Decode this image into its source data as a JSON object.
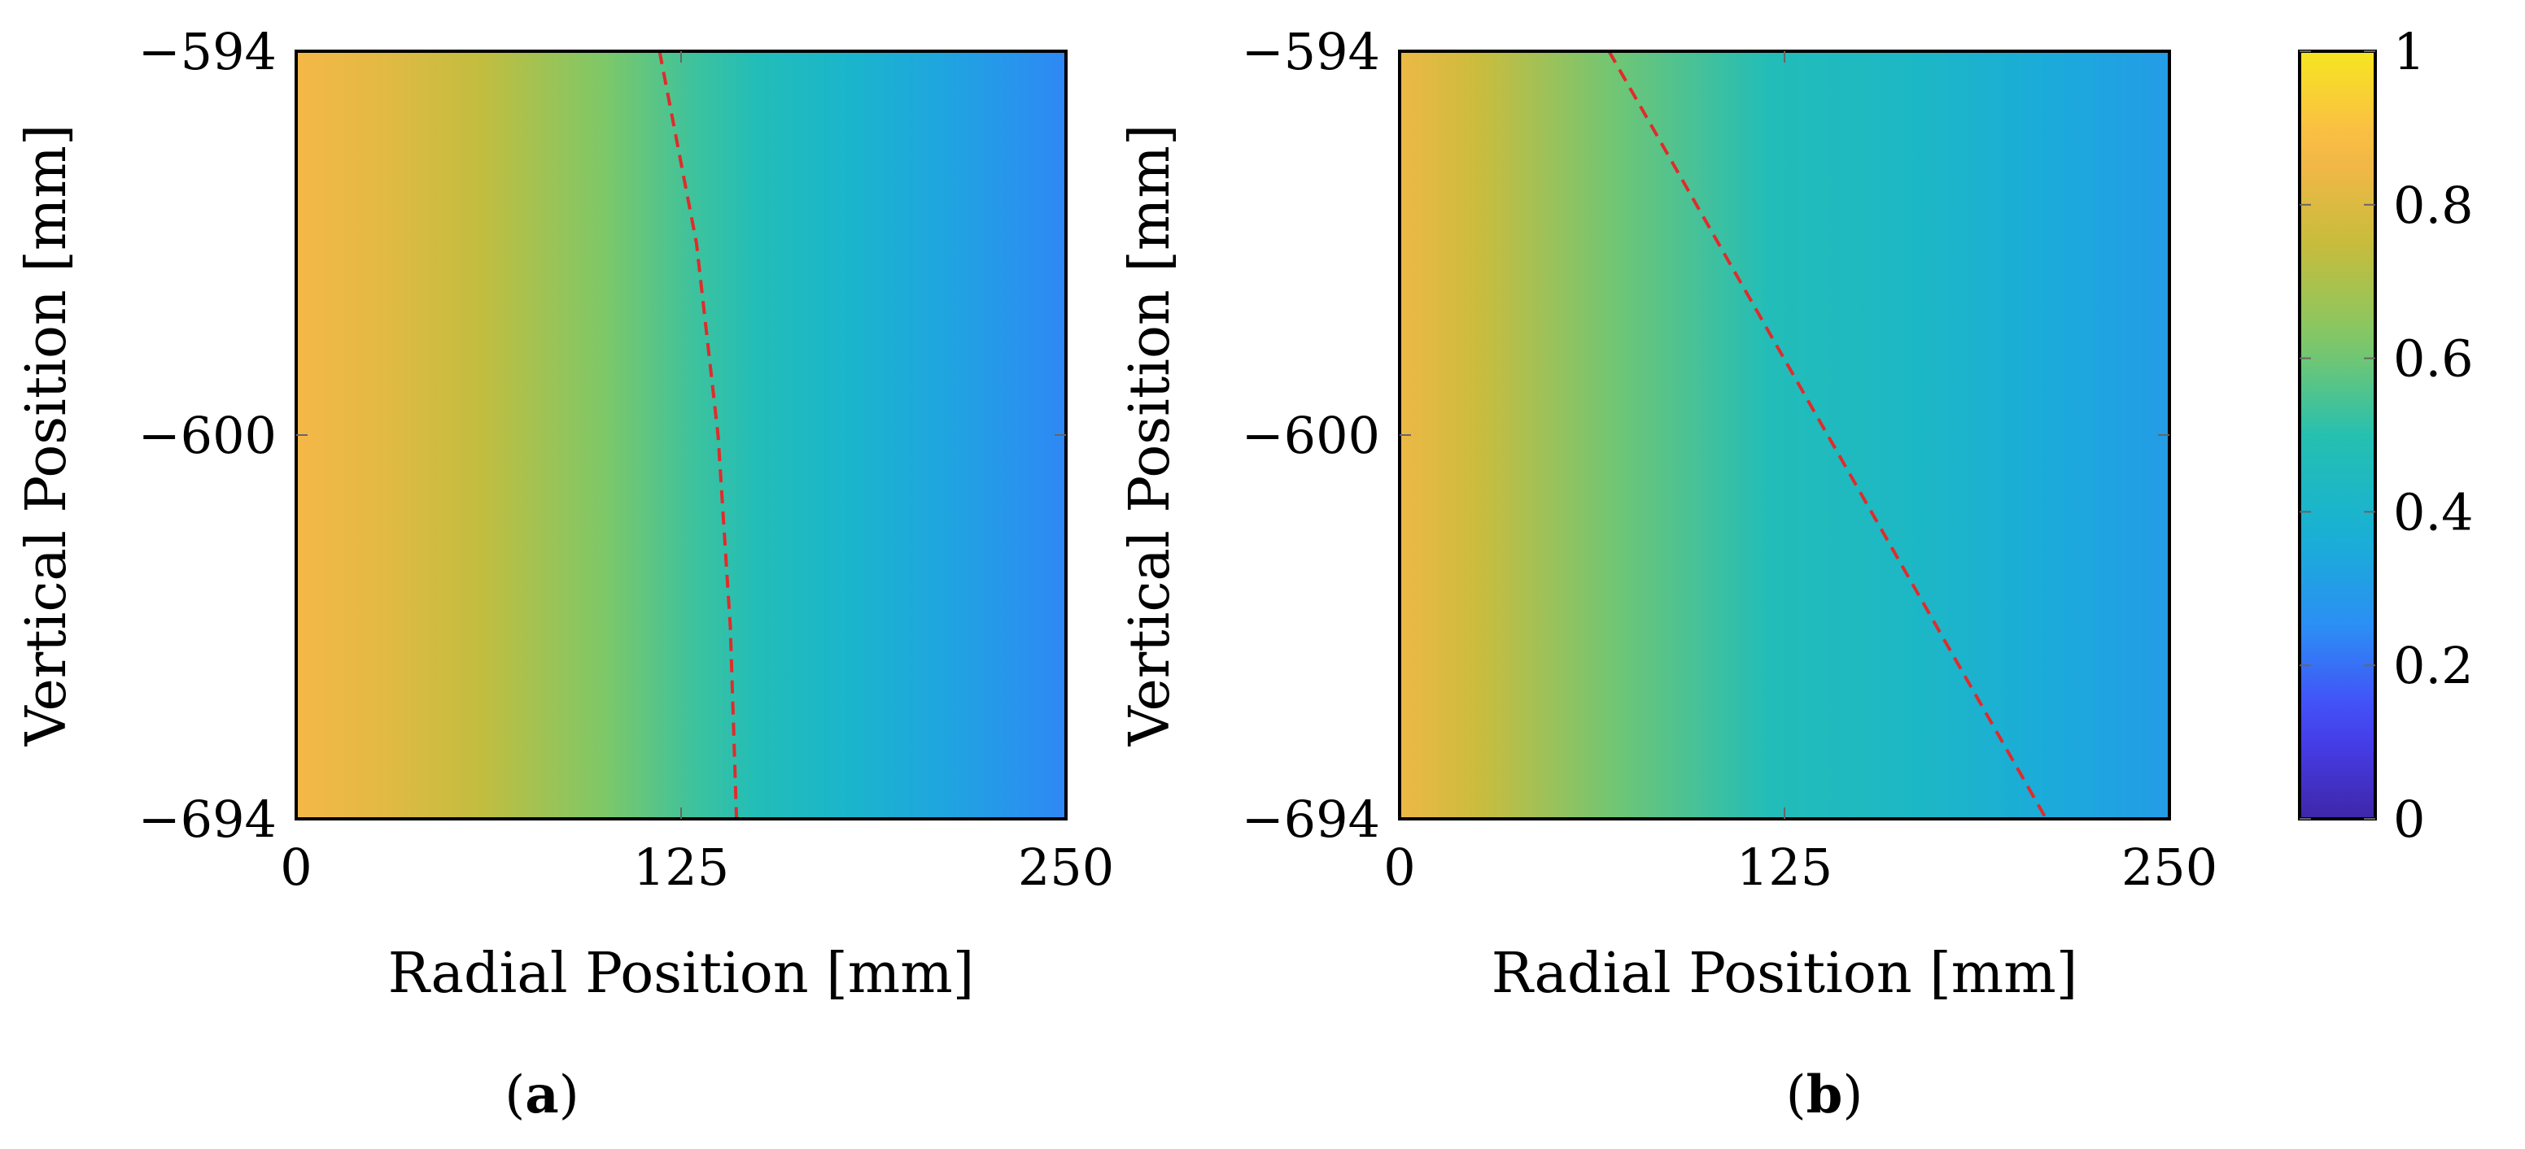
{
  "colors": {
    "colormap": [
      "#3e26a8",
      "#4743f8",
      "#2c8ef5",
      "#17b2d3",
      "#26c0b0",
      "#82c865",
      "#c8bc3c",
      "#fbb64a",
      "#f6e620"
    ],
    "dashed_line": "#e02b2b"
  },
  "chart_data": [
    {
      "type": "heatmap",
      "panel_label": "a",
      "xlabel": "Radial Position [mm]",
      "ylabel": "Vertical Position [mm]",
      "xlim": [
        0,
        250
      ],
      "x_ticks": [
        "0",
        "125",
        "250"
      ],
      "y_ticks": [
        "−594",
        "−600",
        "−694"
      ],
      "field_profile": [
        {
          "r": 0,
          "value": 0.86
        },
        {
          "r": 25,
          "value": 0.82
        },
        {
          "r": 60,
          "value": 0.74
        },
        {
          "r": 100,
          "value": 0.62
        },
        {
          "r": 130,
          "value": 0.53
        },
        {
          "r": 150,
          "value": 0.47
        },
        {
          "r": 180,
          "value": 0.4
        },
        {
          "r": 210,
          "value": 0.33
        },
        {
          "r": 250,
          "value": 0.24
        }
      ],
      "dashed_line": [
        {
          "r": 118,
          "depth": 0.0
        },
        {
          "r": 130,
          "depth": 0.25
        },
        {
          "r": 137,
          "depth": 0.5
        },
        {
          "r": 141,
          "depth": 0.75
        },
        {
          "r": 143,
          "depth": 1.0
        }
      ]
    },
    {
      "type": "heatmap",
      "panel_label": "b",
      "xlabel": "Radial Position [mm]",
      "ylabel": "Vertical Position [mm]",
      "xlim": [
        0,
        250
      ],
      "x_ticks": [
        "0",
        "125",
        "250"
      ],
      "y_ticks": [
        "−594",
        "−600",
        "−694"
      ],
      "field_profile": [
        {
          "r": 0,
          "value": 0.84
        },
        {
          "r": 25,
          "value": 0.76
        },
        {
          "r": 70,
          "value": 0.6
        },
        {
          "r": 120,
          "value": 0.47
        },
        {
          "r": 170,
          "value": 0.42
        },
        {
          "r": 210,
          "value": 0.35
        },
        {
          "r": 250,
          "value": 0.3
        }
      ],
      "dashed_line": [
        {
          "r": 68,
          "depth": 0.0
        },
        {
          "r": 210,
          "depth": 1.0
        }
      ]
    }
  ],
  "colorbar": {
    "range": [
      0,
      1
    ],
    "ticks": [
      "0",
      "0.2",
      "0.4",
      "0.6",
      "0.8",
      "1"
    ]
  }
}
